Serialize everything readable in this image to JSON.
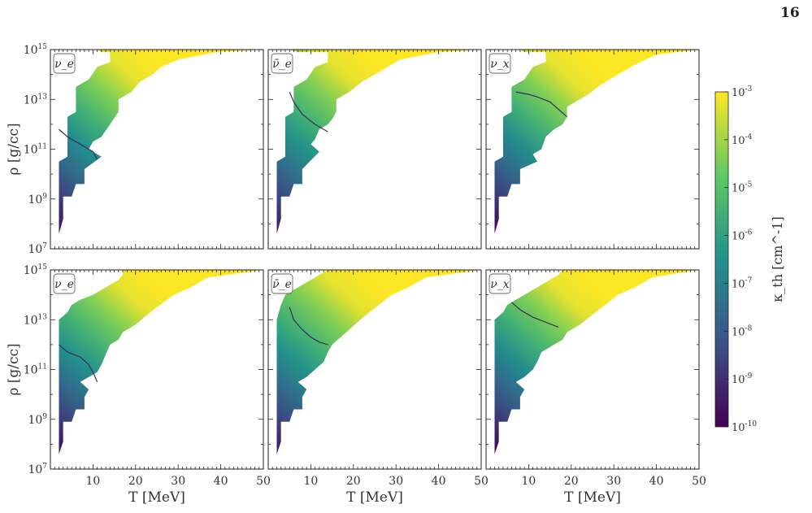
{
  "page": {
    "number": "16"
  },
  "colors": {
    "colormap": [
      "#440154",
      "#3b528b",
      "#21918c",
      "#5ec962",
      "#fde725"
    ],
    "contour": "#3d2a5a",
    "axis": "#222222"
  },
  "chart_data": {
    "type": "heatmap",
    "layout": "2x3 grid of panels sharing axes",
    "xlabel": "T [MeV]",
    "ylabel": "ρ [g/cc]",
    "xlim": [
      0,
      50
    ],
    "ylim_log10": [
      7,
      15
    ],
    "yscale": "log",
    "x_ticks": [
      10,
      20,
      30,
      40,
      50
    ],
    "y_ticks": [
      "10^7",
      "10^9",
      "10^11",
      "10^13",
      "10^15"
    ],
    "colorbar": {
      "label": "κ_th [cm^-1]",
      "scale": "log",
      "range_log10": [
        -10,
        -3
      ],
      "ticks": [
        "10^-3",
        "10^-4",
        "10^-5",
        "10^-6",
        "10^-7",
        "10^-8",
        "10^-9",
        "10^-10"
      ]
    },
    "panels": [
      {
        "label": "ν_e",
        "region_top": [
          [
            2,
            15.0
          ],
          [
            50,
            15.0
          ]
        ],
        "region_bottom": [
          [
            2,
            7.6
          ],
          [
            3,
            8.2
          ],
          [
            3,
            9.1
          ],
          [
            5,
            9.1
          ],
          [
            6,
            9.6
          ],
          [
            8,
            9.6
          ],
          [
            8,
            10.2
          ],
          [
            12,
            10.7
          ],
          [
            9,
            11.0
          ],
          [
            10,
            11.3
          ],
          [
            12,
            11.5
          ],
          [
            14,
            12.0
          ],
          [
            16,
            12.5
          ],
          [
            16,
            13.0
          ],
          [
            19,
            13.3
          ],
          [
            21,
            13.7
          ],
          [
            24,
            14.0
          ],
          [
            26,
            14.3
          ],
          [
            30,
            14.6
          ],
          [
            39,
            14.9
          ],
          [
            50,
            15.0
          ]
        ],
        "region_left": [
          [
            2,
            7.6
          ],
          [
            2,
            10.5
          ],
          [
            4,
            10.7
          ],
          [
            4,
            12.3
          ],
          [
            6,
            12.5
          ],
          [
            6,
            13.5
          ],
          [
            9,
            13.8
          ],
          [
            11,
            14.3
          ],
          [
            14,
            14.5
          ],
          [
            14,
            14.9
          ],
          [
            12,
            14.9
          ],
          [
            11,
            15.0
          ]
        ],
        "contour": [
          [
            2,
            11.8
          ],
          [
            4,
            11.5
          ],
          [
            7,
            11.2
          ],
          [
            9,
            11.0
          ],
          [
            10,
            10.9
          ],
          [
            11,
            10.6
          ]
        ],
        "value_bottom_left_log10": -9.8,
        "value_top_right_log10": -3.0
      },
      {
        "label": "ν̄_e",
        "region_top": [
          [
            2,
            15.0
          ],
          [
            50,
            15.0
          ]
        ],
        "region_bottom": [
          [
            2,
            7.6
          ],
          [
            3,
            8.2
          ],
          [
            3,
            9.1
          ],
          [
            5,
            9.1
          ],
          [
            6,
            9.6
          ],
          [
            8,
            9.6
          ],
          [
            8,
            10.2
          ],
          [
            12,
            10.9
          ],
          [
            10,
            11.2
          ],
          [
            11,
            11.4
          ],
          [
            12,
            11.8
          ],
          [
            14,
            12.0
          ],
          [
            15,
            12.2
          ],
          [
            16,
            12.5
          ],
          [
            16,
            13.0
          ],
          [
            19,
            13.3
          ],
          [
            22,
            13.7
          ],
          [
            25,
            14.0
          ],
          [
            28,
            14.3
          ],
          [
            31,
            14.6
          ],
          [
            40,
            14.9
          ],
          [
            50,
            15.0
          ]
        ],
        "region_left": [
          [
            2,
            7.6
          ],
          [
            2,
            10.5
          ],
          [
            4,
            10.7
          ],
          [
            4,
            12.3
          ],
          [
            6,
            12.5
          ],
          [
            6,
            13.5
          ],
          [
            9,
            13.8
          ],
          [
            11,
            14.3
          ],
          [
            14,
            14.5
          ],
          [
            14,
            14.9
          ],
          [
            7,
            14.9
          ],
          [
            5,
            15.0
          ]
        ],
        "contour": [
          [
            5,
            13.3
          ],
          [
            6,
            12.9
          ],
          [
            8,
            12.4
          ],
          [
            11,
            12.0
          ],
          [
            14,
            11.7
          ]
        ],
        "value_bottom_left_log10": -9.6,
        "value_top_right_log10": -3.0
      },
      {
        "label": "ν_x",
        "region_top": [
          [
            2,
            15.0
          ],
          [
            50,
            15.0
          ]
        ],
        "region_bottom": [
          [
            2,
            7.6
          ],
          [
            3,
            8.2
          ],
          [
            3,
            9.1
          ],
          [
            5,
            9.1
          ],
          [
            6,
            9.6
          ],
          [
            8,
            9.6
          ],
          [
            8,
            10.2
          ],
          [
            12,
            10.5
          ],
          [
            11,
            10.8
          ],
          [
            13,
            11.0
          ],
          [
            14,
            11.5
          ],
          [
            16,
            11.8
          ],
          [
            18,
            12.0
          ],
          [
            19,
            12.3
          ],
          [
            19,
            12.7
          ],
          [
            21,
            12.9
          ],
          [
            24,
            13.2
          ],
          [
            27,
            13.6
          ],
          [
            31,
            14.0
          ],
          [
            35,
            14.4
          ],
          [
            40,
            14.8
          ],
          [
            50,
            15.0
          ]
        ],
        "region_left": [
          [
            2,
            7.6
          ],
          [
            2,
            10.5
          ],
          [
            4,
            10.7
          ],
          [
            4,
            12.3
          ],
          [
            6,
            12.5
          ],
          [
            6,
            13.5
          ],
          [
            9,
            13.8
          ],
          [
            11,
            14.3
          ],
          [
            14,
            14.5
          ],
          [
            14,
            14.9
          ],
          [
            9,
            14.9
          ],
          [
            8,
            15.0
          ]
        ],
        "contour": [
          [
            7,
            13.3
          ],
          [
            10,
            13.2
          ],
          [
            12,
            13.1
          ],
          [
            15,
            12.9
          ],
          [
            17,
            12.6
          ],
          [
            19,
            12.3
          ]
        ],
        "value_bottom_left_log10": -10.0,
        "value_top_right_log10": -3.0
      },
      {
        "label": "ν_e",
        "region_top": [
          [
            2,
            15.0
          ],
          [
            50,
            15.0
          ]
        ],
        "region_bottom": [
          [
            2,
            7.6
          ],
          [
            3,
            8.1
          ],
          [
            3,
            8.9
          ],
          [
            5,
            8.9
          ],
          [
            6,
            9.4
          ],
          [
            8,
            9.4
          ],
          [
            8,
            9.9
          ],
          [
            9,
            10.2
          ],
          [
            7,
            10.5
          ],
          [
            9,
            10.7
          ],
          [
            11,
            10.9
          ],
          [
            12,
            11.2
          ],
          [
            13,
            11.6
          ],
          [
            14,
            12.0
          ],
          [
            16,
            12.2
          ],
          [
            17,
            12.5
          ],
          [
            20,
            12.8
          ],
          [
            22,
            13.1
          ],
          [
            25,
            13.5
          ],
          [
            29,
            14.0
          ],
          [
            33,
            14.3
          ],
          [
            37,
            14.7
          ],
          [
            50,
            15.0
          ]
        ],
        "region_left": [
          [
            2,
            7.6
          ],
          [
            2,
            13.0
          ],
          [
            4,
            13.3
          ],
          [
            5,
            13.6
          ],
          [
            7,
            13.8
          ],
          [
            10,
            14.0
          ],
          [
            12,
            14.2
          ],
          [
            14,
            14.4
          ],
          [
            16,
            14.6
          ],
          [
            17,
            14.8
          ],
          [
            17,
            15.0
          ]
        ],
        "contour": [
          [
            2,
            12.0
          ],
          [
            4,
            11.7
          ],
          [
            7,
            11.5
          ],
          [
            9,
            11.2
          ],
          [
            10,
            10.9
          ],
          [
            11,
            10.5
          ]
        ],
        "value_bottom_left_log10": -9.8,
        "value_top_right_log10": -3.0
      },
      {
        "label": "ν̄_e",
        "region_top": [
          [
            2,
            15.0
          ],
          [
            50,
            15.0
          ]
        ],
        "region_bottom": [
          [
            2,
            7.6
          ],
          [
            3,
            8.1
          ],
          [
            3,
            8.9
          ],
          [
            5,
            8.9
          ],
          [
            6,
            9.4
          ],
          [
            8,
            9.4
          ],
          [
            8,
            9.9
          ],
          [
            9,
            10.2
          ],
          [
            7,
            10.5
          ],
          [
            9,
            10.7
          ],
          [
            11,
            11.0
          ],
          [
            13,
            11.3
          ],
          [
            14,
            11.7
          ],
          [
            15,
            12.0
          ],
          [
            17,
            12.3
          ],
          [
            19,
            12.6
          ],
          [
            21,
            12.9
          ],
          [
            23,
            13.2
          ],
          [
            26,
            13.6
          ],
          [
            29,
            14.0
          ],
          [
            33,
            14.3
          ],
          [
            37,
            14.7
          ],
          [
            50,
            15.0
          ]
        ],
        "region_left": [
          [
            2,
            7.6
          ],
          [
            2,
            13.0
          ],
          [
            3,
            13.6
          ],
          [
            4,
            14.0
          ],
          [
            6,
            14.2
          ],
          [
            8,
            14.4
          ],
          [
            10,
            14.6
          ],
          [
            12,
            14.8
          ],
          [
            14,
            15.0
          ]
        ],
        "contour": [
          [
            5,
            13.5
          ],
          [
            6,
            13.0
          ],
          [
            8,
            12.6
          ],
          [
            10,
            12.3
          ],
          [
            12,
            12.1
          ],
          [
            14,
            12.0
          ]
        ],
        "value_bottom_left_log10": -9.6,
        "value_top_right_log10": -3.0
      },
      {
        "label": "ν_x",
        "region_top": [
          [
            2,
            15.0
          ],
          [
            50,
            15.0
          ]
        ],
        "region_bottom": [
          [
            2,
            7.6
          ],
          [
            3,
            8.1
          ],
          [
            3,
            8.9
          ],
          [
            5,
            8.9
          ],
          [
            6,
            9.4
          ],
          [
            8,
            9.4
          ],
          [
            8,
            9.9
          ],
          [
            9,
            10.2
          ],
          [
            7,
            10.5
          ],
          [
            9,
            10.7
          ],
          [
            11,
            11.0
          ],
          [
            12,
            11.3
          ],
          [
            13,
            11.7
          ],
          [
            16,
            12.0
          ],
          [
            18,
            12.2
          ],
          [
            19,
            12.5
          ],
          [
            22,
            12.8
          ],
          [
            25,
            13.2
          ],
          [
            28,
            13.6
          ],
          [
            31,
            14.0
          ],
          [
            35,
            14.3
          ],
          [
            39,
            14.7
          ],
          [
            50,
            15.0
          ]
        ],
        "region_left": [
          [
            2,
            7.6
          ],
          [
            2,
            13.0
          ],
          [
            4,
            13.3
          ],
          [
            5,
            13.6
          ],
          [
            7,
            13.8
          ],
          [
            9,
            14.0
          ],
          [
            11,
            14.2
          ],
          [
            13,
            14.4
          ],
          [
            15,
            14.6
          ],
          [
            17,
            14.8
          ],
          [
            18,
            15.0
          ]
        ],
        "contour": [
          [
            6,
            13.7
          ],
          [
            8,
            13.4
          ],
          [
            11,
            13.1
          ],
          [
            14,
            12.9
          ],
          [
            17,
            12.7
          ]
        ],
        "value_bottom_left_log10": -10.0,
        "value_top_right_log10": -3.0
      }
    ]
  }
}
